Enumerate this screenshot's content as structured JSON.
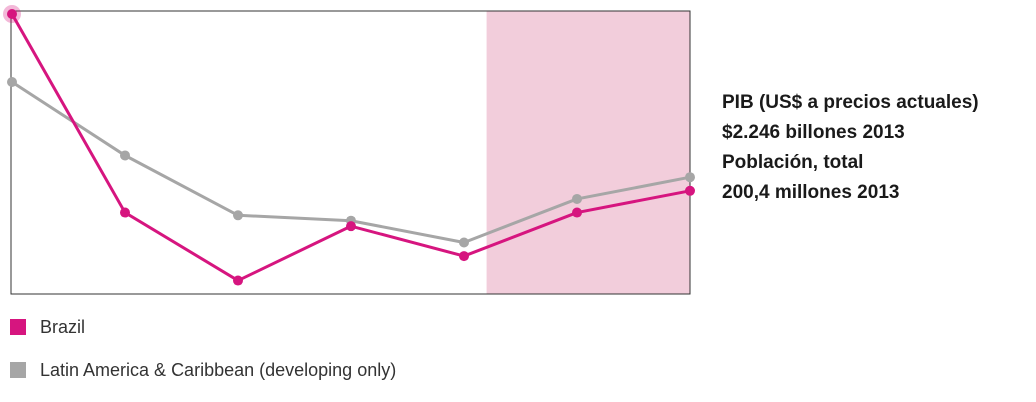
{
  "chart_data": {
    "type": "line",
    "x": [
      0,
      1,
      2,
      3,
      4,
      5,
      6
    ],
    "series": [
      {
        "name": "Brazil",
        "color": "#d6157f",
        "values": [
          100,
          27,
          2,
          22,
          11,
          27,
          35
        ]
      },
      {
        "name": "Latin America & Caribbean (developing only)",
        "color": "#a6a6a6",
        "values": [
          75,
          48,
          26,
          24,
          16,
          32,
          40
        ]
      }
    ],
    "ylim": [
      0,
      100
    ],
    "grid": false,
    "shaded_region": {
      "x_start": 4.2,
      "x_end": 6,
      "color": "#f2cddb"
    },
    "legend": "bottom"
  },
  "info": {
    "line1": "PIB (US$ a precios actuales)",
    "line2": "$2.246 billones 2013",
    "line3": "Población, total",
    "line4": "200,4 millones 2013"
  },
  "legend": {
    "brazil": "Brazil",
    "region": "Latin America & Caribbean (developing only)"
  }
}
